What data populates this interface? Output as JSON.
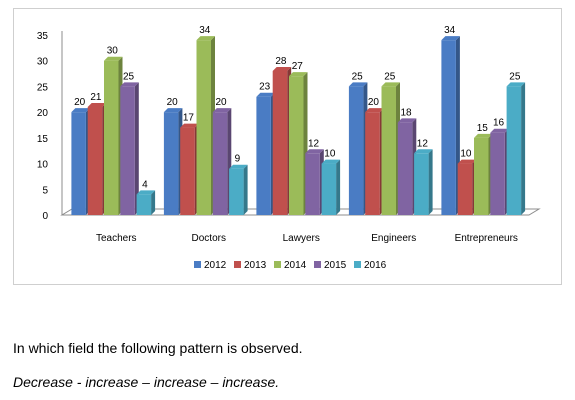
{
  "chart_data": {
    "type": "bar",
    "title": "",
    "xlabel": "",
    "ylabel": "",
    "ylim": [
      0,
      35
    ],
    "yticks": [
      0,
      5,
      10,
      15,
      20,
      25,
      30,
      35
    ],
    "grid": false,
    "legend_position": "bottom",
    "categories": [
      "Teachers",
      "Doctors",
      "Lawyers",
      "Engineers",
      "Entrepreneurs"
    ],
    "series": [
      {
        "name": "2012",
        "color": "#4a7cc4",
        "values": [
          20,
          20,
          23,
          25,
          34
        ]
      },
      {
        "name": "2013",
        "color": "#c0504d",
        "values": [
          21,
          17,
          28,
          20,
          10
        ]
      },
      {
        "name": "2014",
        "color": "#9bbb59",
        "values": [
          30,
          34,
          27,
          25,
          15
        ]
      },
      {
        "name": "2015",
        "color": "#8064a2",
        "values": [
          25,
          20,
          12,
          18,
          16
        ]
      },
      {
        "name": "2016",
        "color": "#4bacc6",
        "values": [
          4,
          9,
          10,
          12,
          25
        ]
      }
    ]
  },
  "question": {
    "text": "In which field the following pattern is observed.",
    "pattern": "Decrease - increase – increase – increase."
  }
}
